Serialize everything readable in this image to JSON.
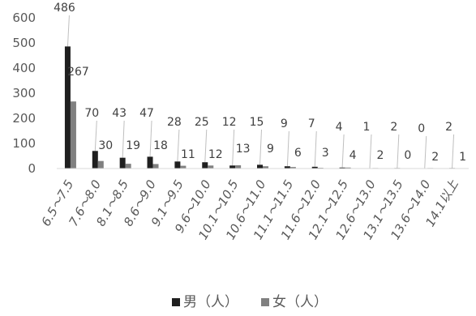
{
  "chart_data": {
    "type": "bar",
    "title": "",
    "xlabel": "",
    "ylabel": "",
    "ylim": [
      0,
      600
    ],
    "yticks": [
      0,
      100,
      200,
      300,
      400,
      500,
      600
    ],
    "grid": false,
    "legend_position": "bottom",
    "categories": [
      "6.5～7.5",
      "7.6～8.0",
      "8.1～8.5",
      "8.6～9.0",
      "9.1～9.5",
      "9.6～10.0",
      "10.1～10.5",
      "10.6～11.0",
      "11.1～11.5",
      "11.6～12.0",
      "12.1～12.5",
      "12.6～13.0",
      "13.1～13.5",
      "13.6～14.0",
      "14.1以上"
    ],
    "series": [
      {
        "name": "男（人）",
        "color": "#1f1f1f",
        "values": [
          486,
          70,
          43,
          47,
          28,
          25,
          12,
          15,
          9,
          7,
          4,
          1,
          2,
          0,
          2
        ]
      },
      {
        "name": "女（人）",
        "color": "#808080",
        "values": [
          267,
          30,
          19,
          18,
          11,
          12,
          13,
          9,
          6,
          3,
          4,
          2,
          0,
          2,
          1
        ]
      }
    ]
  }
}
